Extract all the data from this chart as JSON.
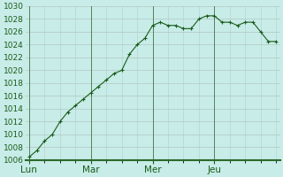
{
  "xlabel_ticks": [
    "Lun",
    "Mar",
    "Mer",
    "Jeu"
  ],
  "ylim": [
    1006,
    1030
  ],
  "yticks": [
    1006,
    1008,
    1010,
    1012,
    1014,
    1016,
    1018,
    1020,
    1022,
    1024,
    1026,
    1028
  ],
  "background_color": "#c8ece8",
  "grid_color_major": "#b0c8c4",
  "grid_color_minor": "#c0d8d4",
  "line_color": "#1a5c1a",
  "marker_color": "#1a5c1a",
  "day_line_color": "#4a7a4a",
  "spine_color": "#2a6a2a",
  "values": [
    1006.5,
    1007.5,
    1009.0,
    1010.0,
    1012.0,
    1013.5,
    1014.5,
    1015.5,
    1016.5,
    1017.5,
    1018.5,
    1019.5,
    1020.0,
    1022.5,
    1024.0,
    1025.0,
    1027.0,
    1027.5,
    1027.0,
    1027.0,
    1026.5,
    1026.5,
    1028.0,
    1028.5,
    1028.5,
    1027.5,
    1027.5,
    1027.0,
    1027.5,
    1027.5,
    1026.0,
    1024.5,
    1024.5
  ],
  "n_points": 33,
  "day_positions": [
    0,
    8,
    16,
    24
  ],
  "tick_fontsize": 6.5,
  "xlabel_fontsize": 7.5
}
